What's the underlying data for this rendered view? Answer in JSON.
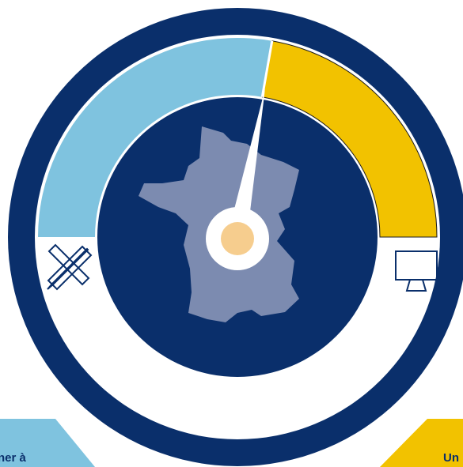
{
  "labels": {
    "left": "ner à",
    "right": "Un"
  }
}
